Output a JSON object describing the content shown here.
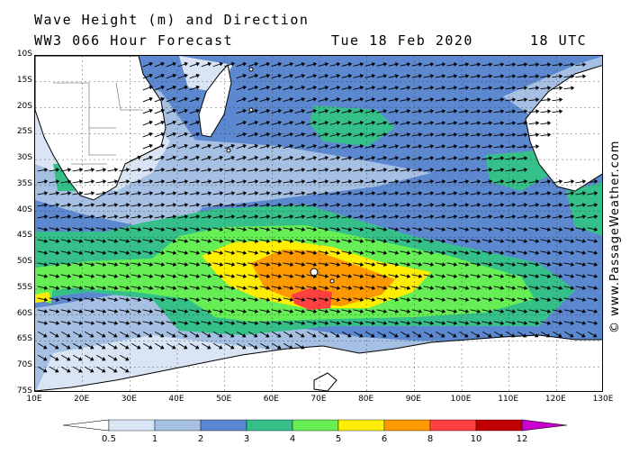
{
  "title": {
    "line1": "Wave Height (m) and Direction",
    "line2": "WW3 066 Hour Forecast",
    "date": "Tue 18 Feb 2020",
    "time": "18 UTC"
  },
  "credit": "© www.PassageWeather.com",
  "map": {
    "region": "South Indian Ocean",
    "lon_range": [
      10,
      130
    ],
    "lat_range": [
      -75,
      -10
    ],
    "lat_ticks": [
      "10S",
      "15S",
      "20S",
      "25S",
      "30S",
      "35S",
      "40S",
      "45S",
      "50S",
      "55S",
      "60S",
      "65S",
      "70S",
      "75S"
    ],
    "lon_ticks": [
      "10E",
      "20E",
      "30E",
      "40E",
      "50E",
      "60E",
      "70E",
      "80E",
      "90E",
      "100E",
      "110E",
      "120E",
      "130E"
    ],
    "land_color": "#ffffff",
    "wave_classes": [
      "<0.5",
      "0.5-1",
      "1-2",
      "2-3",
      "3-4",
      "4-5",
      "5-6",
      "6-8",
      "8-10",
      "10-12",
      ">12"
    ],
    "max_wave_height_area": "52S 70E",
    "arrow_color": "#000000"
  },
  "legend": {
    "labels": [
      "0.5",
      "1",
      "2",
      "3",
      "4",
      "5",
      "6",
      "8",
      "10",
      "12"
    ],
    "colors": [
      "#ffffff",
      "#d9e5f4",
      "#a5c0e3",
      "#5c88cf",
      "#35c08a",
      "#66ee55",
      "#ffee00",
      "#ff9900",
      "#ff4040",
      "#c00000",
      "#cc00cc"
    ]
  }
}
